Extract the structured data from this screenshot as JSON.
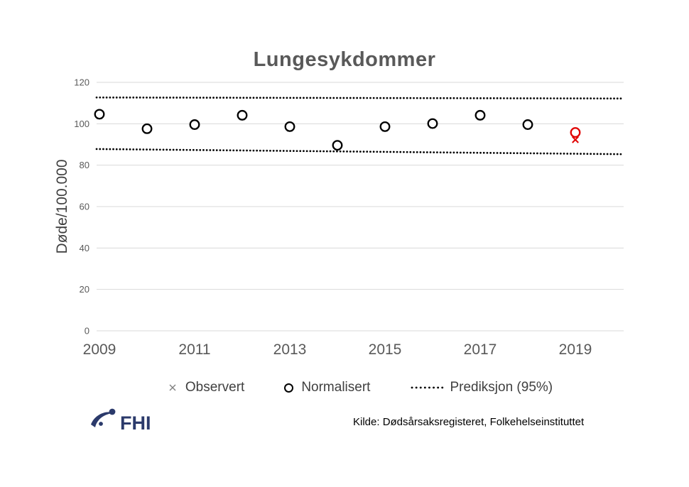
{
  "chart_data": {
    "type": "scatter",
    "title": "Lungesykdommer",
    "ylabel": "Døde/100.000",
    "xlabel": "",
    "ylim": [
      0,
      120
    ],
    "yticks": [
      0,
      20,
      40,
      60,
      80,
      100,
      120
    ],
    "xticks": [
      2009,
      2011,
      2013,
      2015,
      2017,
      2019
    ],
    "years": [
      2009,
      2010,
      2011,
      2012,
      2013,
      2014,
      2015,
      2016,
      2017,
      2018,
      2019
    ],
    "grid": true,
    "legend_position": "bottom",
    "series": [
      {
        "name": "Observert",
        "marker": "x",
        "color": "#7f7f7f",
        "values": [
          103.4,
          96.4,
          98.4,
          102.9,
          97.4,
          88.4,
          97.4,
          98.9,
          102.9,
          98.4,
          92.3
        ]
      },
      {
        "name": "Normalisert",
        "marker": "circle",
        "color": "#000000",
        "values": [
          104.6,
          97.6,
          99.6,
          104.1,
          98.6,
          89.6,
          98.6,
          100.1,
          104.1,
          99.6,
          95.8
        ]
      },
      {
        "name": "Prediksjon (95%)",
        "marker": "dotted",
        "color": "#000000",
        "upper": [
          112.7,
          112.2
        ],
        "lower": [
          87.8,
          85.3
        ]
      }
    ],
    "highlight": {
      "year": 2019,
      "color": "#e00000"
    }
  },
  "colors": {
    "grid": "#d9d9d9",
    "axis_text": "#595959",
    "title_text": "#595959",
    "legend_text": "#404040",
    "logo_navy": "#2b3a6b"
  },
  "footer": {
    "logo_text": "FHI",
    "source": "Kilde: Dødsårsaksregisteret, Folkehelseinstituttet"
  }
}
